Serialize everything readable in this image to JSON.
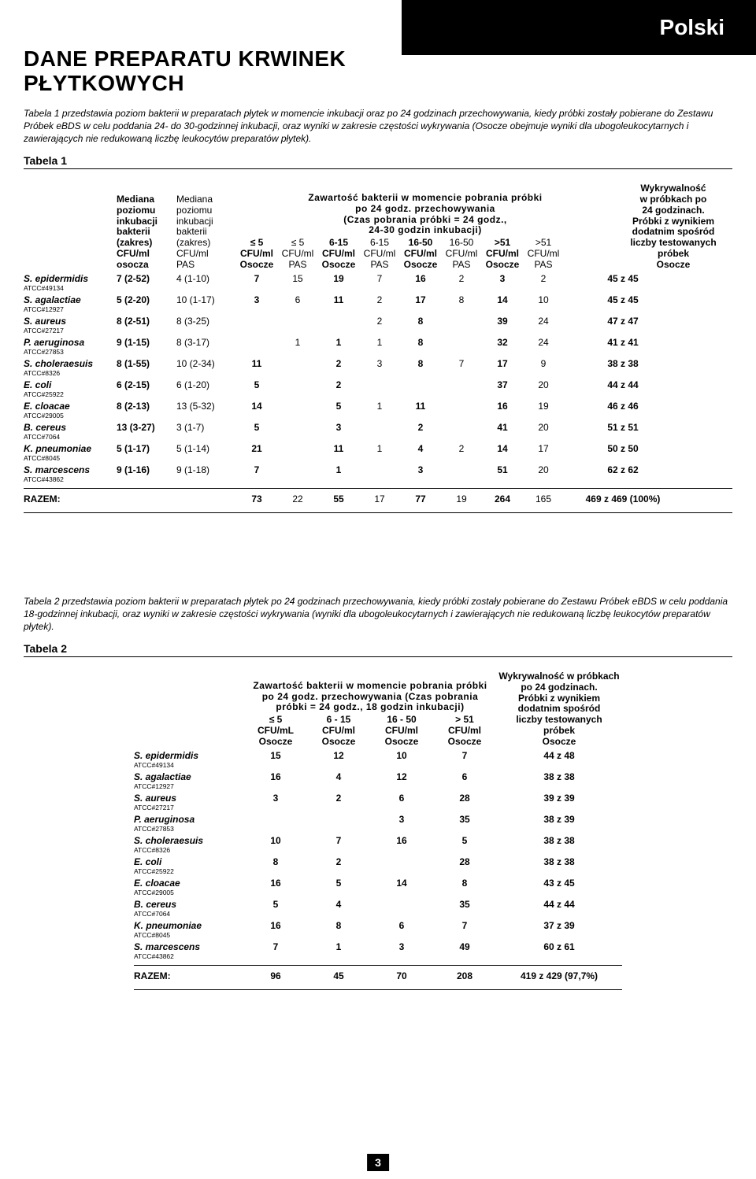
{
  "lang_badge": "Polski",
  "title": "DANE PREPARATU KRWINEK PŁYTKOWYCH",
  "intro1": "Tabela 1 przedstawia poziom bakterii w preparatach płytek w momencie inkubacji oraz po 24 godzinach przechowywania, kiedy próbki zostały pobierane do Zestawu Próbek eBDS w celu poddania 24- do 30-godzinnej inkubacji, oraz wyniki w zakresie częstości wykrywania (Osocze obejmuje wyniki dla ubogoleukocytarnych i zawierających nie redukowaną liczbę leukocytów preparatów płytek).",
  "tabela1_label": "Tabela 1",
  "t1": {
    "col_med1": "Mediana\npoziomu\ninkubacji\nbakterii\n(zakres)\nCFU/ml\nosocza",
    "col_med2": "Mediana\npoziomu\ninkubacji\nbakterii\n(zakres)\nCFU/ml\nPAS",
    "mid_title1": "Zawartość bakterii w momencie pobrania próbki",
    "mid_title2": "po 24 godz. przechowywania",
    "mid_title3": "(Czas pobrania próbki = 24 godz.,",
    "mid_title4": "24-30 godzin inkubacji)",
    "mc": [
      {
        "t": "≤ 5",
        "s": "CFU/ml",
        "b": "Osocze",
        "bold": true
      },
      {
        "t": "≤ 5",
        "s": "CFU/ml",
        "b": "PAS",
        "bold": false
      },
      {
        "t": "6-15",
        "s": "CFU/ml",
        "b": "Osocze",
        "bold": true
      },
      {
        "t": "6-15",
        "s": "CFU/ml",
        "b": "PAS",
        "bold": false
      },
      {
        "t": "16-50",
        "s": "CFU/ml",
        "b": "Osocze",
        "bold": true
      },
      {
        "t": "16-50",
        "s": "CFU/ml",
        "b": "PAS",
        "bold": false
      },
      {
        "t": ">51",
        "s": "CFU/ml",
        "b": "Osocze",
        "bold": true
      },
      {
        "t": ">51",
        "s": "CFU/ml",
        "b": "PAS",
        "bold": false
      }
    ],
    "col_det": "Wykrywalność\nw próbkach po\n24 godzinach.\nPróbki z wynikiem\ndodatnim spośród\nliczby testowanych\npróbek\nOsocze",
    "rows": [
      {
        "name": "S. epidermidis",
        "atcc": "ATCC#49134",
        "m1": "7 (2-52)",
        "m2": "4 (1-10)",
        "c": [
          "7",
          "15",
          "19",
          "7",
          "16",
          "2",
          "3",
          "2"
        ],
        "det": "45 z 45"
      },
      {
        "name": "S. agalactiae",
        "atcc": "ATCC#12927",
        "m1": "5 (2-20)",
        "m2": "10 (1-17)",
        "c": [
          "3",
          "6",
          "11",
          "2",
          "17",
          "8",
          "14",
          "10"
        ],
        "det": "45 z 45"
      },
      {
        "name": "S. aureus",
        "atcc": "ATCC#27217",
        "m1": "8 (2-51)",
        "m2": "8 (3-25)",
        "c": [
          "",
          "",
          "",
          "2",
          "8",
          "",
          "39",
          "24"
        ],
        "det": "47 z 47"
      },
      {
        "name": "P. aeruginosa",
        "atcc": "ATCC#27853",
        "m1": "9 (1-15)",
        "m2": "8 (3-17)",
        "c": [
          "",
          "1",
          "1",
          "1",
          "8",
          "",
          "32",
          "24"
        ],
        "det": "41 z 41"
      },
      {
        "name": "S. choleraesuis",
        "atcc": "ATCC#8326",
        "m1": "8 (1-55)",
        "m2": "10 (2-34)",
        "c": [
          "11",
          "",
          "2",
          "3",
          "8",
          "7",
          "17",
          "9"
        ],
        "det": "38 z 38"
      },
      {
        "name": "E. coli",
        "atcc": "ATCC#25922",
        "m1": "6 (2-15)",
        "m2": "6 (1-20)",
        "c": [
          "5",
          "",
          "2",
          "",
          "",
          "",
          "37",
          "20"
        ],
        "det": "44 z 44"
      },
      {
        "name": "E. cloacae",
        "atcc": "ATCC#29005",
        "m1": "8 (2-13)",
        "m2": "13 (5-32)",
        "c": [
          "14",
          "",
          "5",
          "1",
          "11",
          "",
          "16",
          "19"
        ],
        "det": "46 z 46"
      },
      {
        "name": "B. cereus",
        "atcc": "ATCC#7064",
        "m1": "13 (3-27)",
        "m2": "3 (1-7)",
        "c": [
          "5",
          "",
          "3",
          "",
          "2",
          "",
          "41",
          "20"
        ],
        "det": "51 z 51"
      },
      {
        "name": "K. pneumoniae",
        "atcc": "ATCC#8045",
        "m1": "5 (1-17)",
        "m2": "5 (1-14)",
        "c": [
          "21",
          "",
          "11",
          "1",
          "4",
          "2",
          "14",
          "17"
        ],
        "det": "50 z 50"
      },
      {
        "name": "S. marcescens",
        "atcc": "ATCC#43862",
        "m1": "9 (1-16)",
        "m2": "9 (1-18)",
        "c": [
          "7",
          "",
          "1",
          "",
          "3",
          "",
          "51",
          "20"
        ],
        "det": "62 z 62"
      }
    ],
    "total_label": "RAZEM:",
    "totals": [
      "73",
      "22",
      "55",
      "17",
      "77",
      "19",
      "264",
      "165"
    ],
    "total_det": "469 z 469 (100%)"
  },
  "intro2": "Tabela 2 przedstawia poziom bakterii w preparatach płytek po 24 godzinach przechowywania, kiedy próbki zostały pobierane do Zestawu Próbek eBDS w celu poddania 18-godzinnej inkubacji, oraz wyniki w zakresie częstości wykrywania (wyniki dla ubogoleukocytarnych i zawierających nie redukowaną liczbę leukocytów preparatów płytek).",
  "tabela2_label": "Tabela 2",
  "t2": {
    "mid_title1": "Zawartość bakterii w momencie pobrania próbki",
    "mid_title2": "po 24 godz. przechowywania (Czas pobrania",
    "mid_title3": "próbki = 24 godz., 18 godzin inkubacji)",
    "mc": [
      {
        "t": "≤ 5",
        "s": "CFU/mL",
        "b": "Osocze"
      },
      {
        "t": "6 - 15",
        "s": "CFU/ml",
        "b": "Osocze"
      },
      {
        "t": "16 - 50",
        "s": "CFU/ml",
        "b": "Osocze"
      },
      {
        "t": "> 51",
        "s": "CFU/ml",
        "b": "Osocze"
      }
    ],
    "col_det": "Wykrywalność w próbkach\npo 24 godzinach.\nPróbki z wynikiem\ndodatnim spośród\nliczby testowanych\npróbek\nOsocze",
    "rows": [
      {
        "name": "S. epidermidis",
        "atcc": "ATCC#49134",
        "c": [
          "15",
          "12",
          "10",
          "7"
        ],
        "det": "44 z 48"
      },
      {
        "name": "S. agalactiae",
        "atcc": "ATCC#12927",
        "c": [
          "16",
          "4",
          "12",
          "6"
        ],
        "det": "38 z 38"
      },
      {
        "name": "S. aureus",
        "atcc": "ATCC#27217",
        "c": [
          "3",
          "2",
          "6",
          "28"
        ],
        "det": "39 z 39"
      },
      {
        "name": "P. aeruginosa",
        "atcc": "ATCC#27853",
        "c": [
          "",
          "",
          "3",
          "35"
        ],
        "det": "38 z 39"
      },
      {
        "name": "S. choleraesuis",
        "atcc": "ATCC#8326",
        "c": [
          "10",
          "7",
          "16",
          "5"
        ],
        "det": "38 z 38"
      },
      {
        "name": "E. coli",
        "atcc": "ATCC#25922",
        "c": [
          "8",
          "2",
          "",
          "28"
        ],
        "det": "38 z 38"
      },
      {
        "name": "E. cloacae",
        "atcc": "ATCC#29005",
        "c": [
          "16",
          "5",
          "14",
          "8"
        ],
        "det": "43 z 45"
      },
      {
        "name": "B. cereus",
        "atcc": "ATCC#7064",
        "c": [
          "5",
          "4",
          "",
          "35"
        ],
        "det": "44 z 44"
      },
      {
        "name": "K. pneumoniae",
        "atcc": "ATCC#8045",
        "c": [
          "16",
          "8",
          "6",
          "7"
        ],
        "det": "37 z 39"
      },
      {
        "name": "S. marcescens",
        "atcc": "ATCC#43862",
        "c": [
          "7",
          "1",
          "3",
          "49"
        ],
        "det": "60 z 61"
      }
    ],
    "total_label": "RAZEM:",
    "totals": [
      "96",
      "45",
      "70",
      "208"
    ],
    "total_det": "419 z 429 (97,7%)"
  },
  "page_num": "3"
}
